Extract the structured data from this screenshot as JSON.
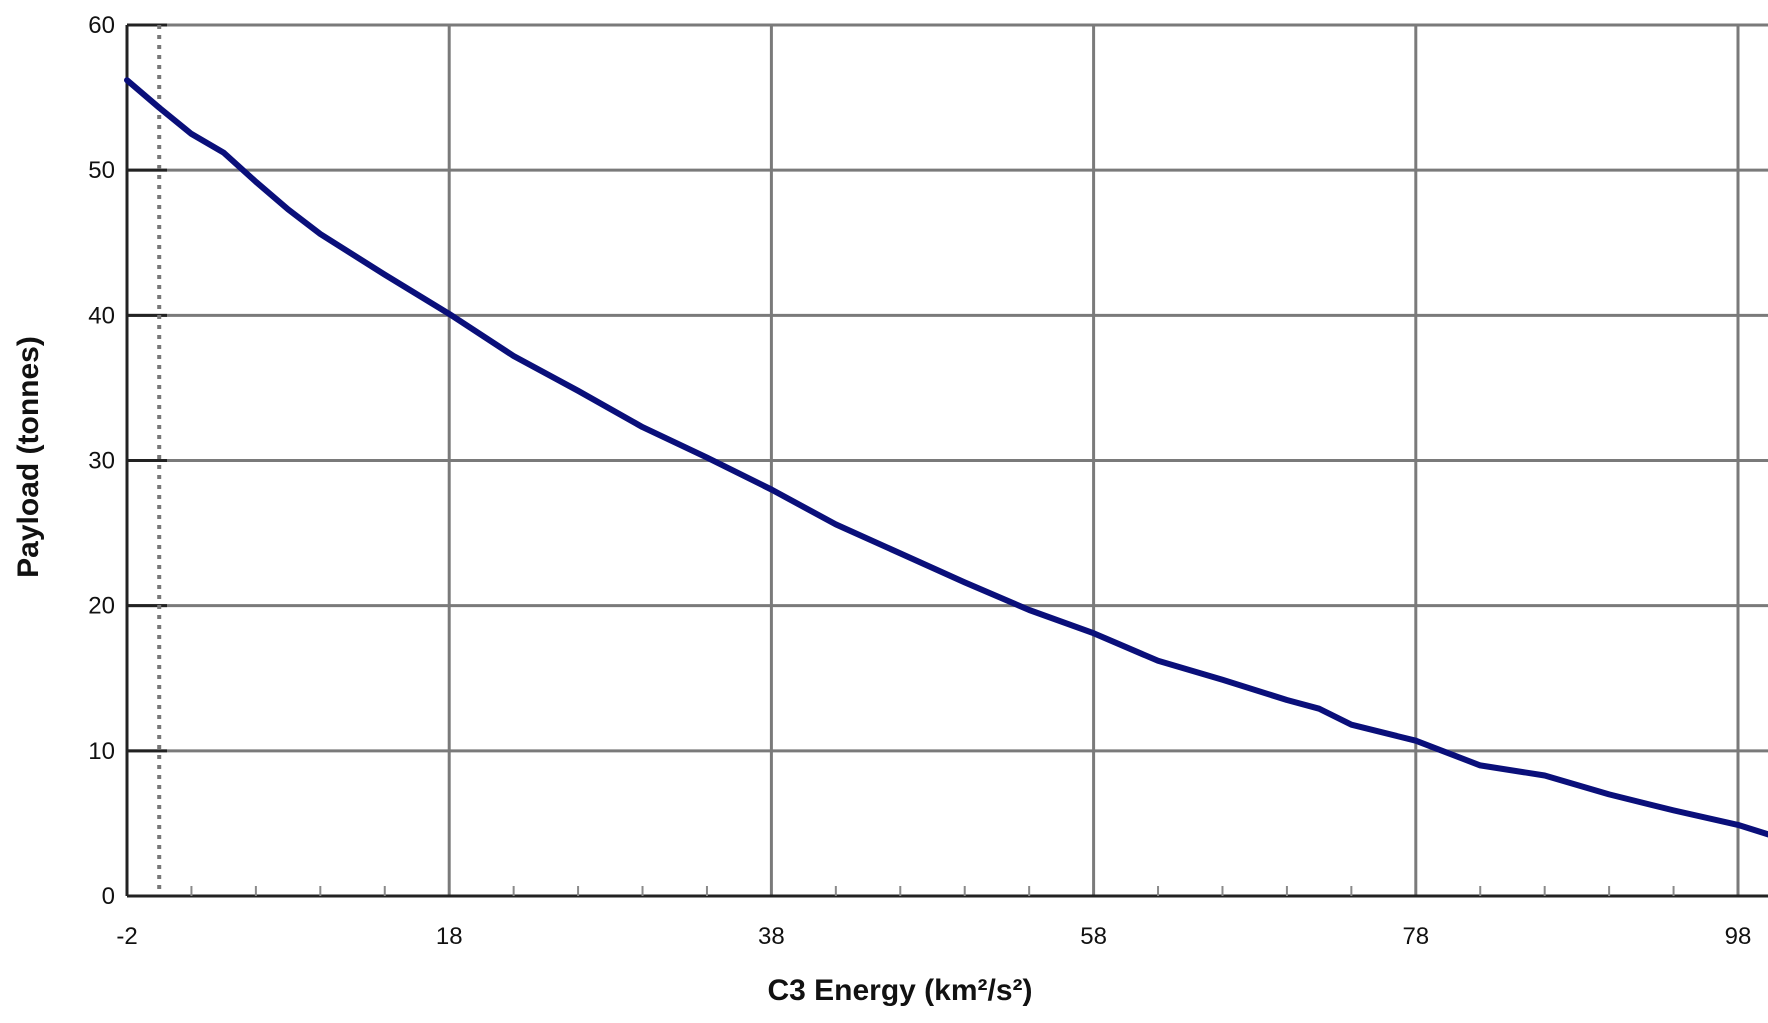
{
  "chart_data": {
    "type": "line",
    "xlabel": "C3 Energy (km²/s²)",
    "ylabel": "Payload (tonnes)",
    "xlim": [
      -2,
      100
    ],
    "ylim": [
      0,
      60
    ],
    "x_ticks": [
      "-2",
      "18",
      "38",
      "58",
      "78",
      "98"
    ],
    "y_ticks": [
      "0",
      "10",
      "20",
      "30",
      "40",
      "50",
      "60"
    ],
    "grid": true,
    "line_color": "#0a0f7a",
    "series": [
      {
        "x": [
          -2,
          0,
          2,
          4,
          6,
          8,
          10,
          14,
          18,
          22,
          26,
          30,
          34,
          38,
          42,
          46,
          50,
          54,
          58,
          62,
          66,
          70,
          72,
          74,
          78,
          82,
          86,
          90,
          94,
          98,
          100
        ],
        "y": [
          56.2,
          54.3,
          52.5,
          51.2,
          49.2,
          47.3,
          45.6,
          42.8,
          40.1,
          37.2,
          34.8,
          32.3,
          30.2,
          28.0,
          25.6,
          23.6,
          21.6,
          19.7,
          18.1,
          16.2,
          14.9,
          13.5,
          12.9,
          11.8,
          10.7,
          9.0,
          8.3,
          7.0,
          5.9,
          4.9,
          4.2
        ]
      }
    ]
  }
}
